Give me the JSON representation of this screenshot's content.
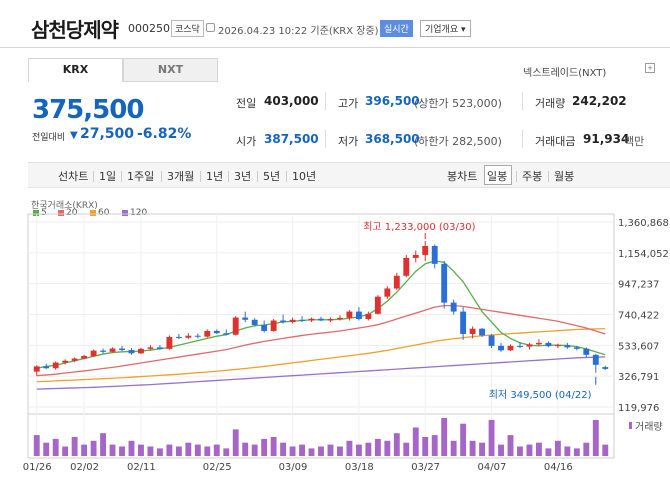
{
  "header": {
    "name": "삼천당제약",
    "code": "000250",
    "market": "코스닥",
    "timestamp": "2026.04.23 10:22  기준(KRX 장중)",
    "realtime": "실시간",
    "company_info": "기업개요 ▾"
  },
  "tabs": {
    "krx": "KRX",
    "nxt": "NXT"
  },
  "nextrade": "넥스트레이드(NXT)",
  "nextrade_icon": "plus-icon",
  "price": {
    "current": "375,500",
    "change_label": "전일대비",
    "change_arrow": "▼",
    "change": "27,500",
    "change_pct": "-6.82%"
  },
  "stats": {
    "prev_label": "전일",
    "prev": "403,000",
    "high_label": "고가",
    "high": "396,500",
    "high_limit": "(상한가 523,000)",
    "volume_label": "거래량",
    "volume": "242,202",
    "open_label": "시가",
    "open": "387,500",
    "low_label": "저가",
    "low": "368,500",
    "low_limit": "(하한가 282,500)",
    "amount_label": "거래대금",
    "amount": "91,934",
    "amount_unit": "백만"
  },
  "periods": {
    "line": "선차트",
    "d1": "1일",
    "w1": "1주일",
    "m3": "3개월",
    "y1": "1년",
    "y3": "3년",
    "y5": "5년",
    "y10": "10년",
    "candle": "봉차트",
    "daily": "일봉",
    "weekly": "주봉",
    "monthly": "월봉"
  },
  "chart_src": "한국거래소(KRX)",
  "legend": [
    {
      "label": "5",
      "color": "#55b04a"
    },
    {
      "label": "20",
      "color": "#e26a6a"
    },
    {
      "label": "60",
      "color": "#f0a030"
    },
    {
      "label": "120",
      "color": "#9a6fd0"
    }
  ],
  "volume_legend": "거래량",
  "chart_data": {
    "type": "candlestick",
    "y_ticks": [
      "1,360,868",
      "1,154,052",
      "947,237",
      "740,422",
      "533,607",
      "326,791",
      "119,976"
    ],
    "ylim": [
      119976,
      1360868
    ],
    "x_ticks": [
      "01/26",
      "02/02",
      "02/11",
      "02/25",
      "03/09",
      "03/18",
      "03/27",
      "04/07",
      "04/16"
    ],
    "high_annotation": "최고 1,233,000 (03/30)",
    "low_annotation": "최저 349,500 (04/22)",
    "colors": {
      "up": "#e03030",
      "down": "#2a6fd6",
      "volume": "#a566c8"
    },
    "candles": [
      [
        357000,
        400000,
        330000,
        392000
      ],
      [
        392000,
        410000,
        375000,
        380000
      ],
      [
        380000,
        425000,
        370000,
        418000
      ],
      [
        418000,
        440000,
        405000,
        430000
      ],
      [
        430000,
        452000,
        420000,
        445000
      ],
      [
        445000,
        470000,
        440000,
        462000
      ],
      [
        462000,
        505000,
        455000,
        498000
      ],
      [
        498000,
        512000,
        480000,
        490000
      ],
      [
        490000,
        520000,
        485000,
        512000
      ],
      [
        512000,
        530000,
        495000,
        502000
      ],
      [
        502000,
        515000,
        470000,
        480000
      ],
      [
        480000,
        518000,
        475000,
        510000
      ],
      [
        510000,
        535000,
        500000,
        520000
      ],
      [
        520000,
        535000,
        505000,
        510000
      ],
      [
        510000,
        600000,
        505000,
        590000
      ],
      [
        590000,
        610000,
        575000,
        585000
      ],
      [
        585000,
        615000,
        575000,
        598000
      ],
      [
        598000,
        612000,
        580000,
        592000
      ],
      [
        592000,
        640000,
        585000,
        630000
      ],
      [
        630000,
        640000,
        610000,
        615000
      ],
      [
        615000,
        640000,
        600000,
        605000
      ],
      [
        605000,
        730000,
        600000,
        720000
      ],
      [
        720000,
        760000,
        690000,
        705000
      ],
      [
        705000,
        715000,
        660000,
        670000
      ],
      [
        670000,
        700000,
        620000,
        630000
      ],
      [
        630000,
        710000,
        625000,
        700000
      ],
      [
        700000,
        740000,
        680000,
        690000
      ],
      [
        690000,
        720000,
        680000,
        705000
      ],
      [
        705000,
        730000,
        690000,
        700000
      ],
      [
        700000,
        720000,
        690000,
        712000
      ],
      [
        712000,
        725000,
        695000,
        700000
      ],
      [
        700000,
        720000,
        690000,
        710000
      ],
      [
        710000,
        735000,
        700000,
        718000
      ],
      [
        718000,
        770000,
        700000,
        760000
      ],
      [
        760000,
        790000,
        700000,
        710000
      ],
      [
        710000,
        760000,
        700000,
        745000
      ],
      [
        745000,
        870000,
        740000,
        860000
      ],
      [
        860000,
        930000,
        845000,
        915000
      ],
      [
        915000,
        1020000,
        905000,
        1000000
      ],
      [
        1000000,
        1140000,
        990000,
        1120000
      ],
      [
        1120000,
        1170000,
        1090000,
        1140000
      ],
      [
        1140000,
        1233000,
        1100000,
        1200000
      ],
      [
        1200000,
        1210000,
        1050000,
        1080000
      ],
      [
        1080000,
        1100000,
        780000,
        820000
      ],
      [
        820000,
        840000,
        740000,
        760000
      ],
      [
        760000,
        790000,
        570000,
        610000
      ],
      [
        610000,
        660000,
        580000,
        645000
      ],
      [
        645000,
        650000,
        590000,
        600000
      ],
      [
        600000,
        610000,
        515000,
        530000
      ],
      [
        530000,
        550000,
        490000,
        500000
      ],
      [
        500000,
        540000,
        495000,
        530000
      ],
      [
        530000,
        555000,
        515000,
        525000
      ],
      [
        525000,
        550000,
        505000,
        540000
      ],
      [
        540000,
        575000,
        530000,
        550000
      ],
      [
        550000,
        560000,
        520000,
        528000
      ],
      [
        528000,
        545000,
        515000,
        535000
      ],
      [
        535000,
        550000,
        510000,
        520000
      ],
      [
        520000,
        530000,
        500000,
        510000
      ],
      [
        510000,
        520000,
        450000,
        470000
      ],
      [
        470000,
        475000,
        349500,
        403000
      ],
      [
        387500,
        396500,
        368500,
        375500
      ]
    ],
    "ma5": [
      380000,
      392000,
      400000,
      415000,
      430000,
      445000,
      460000,
      475000,
      485000,
      490000,
      492000,
      495000,
      502000,
      510000,
      520000,
      535000,
      550000,
      565000,
      580000,
      595000,
      605000,
      630000,
      650000,
      665000,
      670000,
      680000,
      690000,
      695000,
      700000,
      705000,
      705000,
      705000,
      708000,
      715000,
      725000,
      740000,
      780000,
      830000,
      890000,
      960000,
      1030000,
      1080000,
      1100000,
      1090000,
      1030000,
      960000,
      860000,
      760000,
      690000,
      620000,
      580000,
      550000,
      535000,
      530000,
      535000,
      535000,
      532000,
      525000,
      510000,
      490000,
      470000
    ],
    "ma20": [
      330000,
      335000,
      340000,
      348000,
      355000,
      362000,
      370000,
      378000,
      386000,
      395000,
      405000,
      415000,
      425000,
      435000,
      445000,
      455000,
      465000,
      475000,
      485000,
      495000,
      505000,
      520000,
      535000,
      548000,
      560000,
      570000,
      580000,
      590000,
      600000,
      608000,
      615000,
      622000,
      630000,
      640000,
      650000,
      660000,
      672000,
      690000,
      710000,
      730000,
      750000,
      770000,
      790000,
      800000,
      800000,
      795000,
      785000,
      775000,
      765000,
      755000,
      745000,
      735000,
      725000,
      715000,
      705000,
      695000,
      680000,
      665000,
      650000,
      630000,
      610000
    ],
    "ma60": [
      290000,
      292000,
      295000,
      298000,
      301000,
      304000,
      307000,
      310000,
      313000,
      316000,
      320000,
      324000,
      328000,
      332000,
      336000,
      340000,
      345000,
      350000,
      355000,
      360000,
      366000,
      372000,
      378000,
      385000,
      392000,
      400000,
      408000,
      416000,
      424000,
      432000,
      440000,
      448000,
      456000,
      464000,
      472000,
      480000,
      490000,
      500000,
      512000,
      524000,
      536000,
      548000,
      560000,
      570000,
      578000,
      585000,
      592000,
      598000,
      603000,
      608000,
      612000,
      616000,
      620000,
      624000,
      628000,
      632000,
      636000,
      640000,
      642000,
      644000,
      645000
    ],
    "ma120": [
      240000,
      242000,
      244000,
      246000,
      248000,
      250000,
      252000,
      255000,
      258000,
      261000,
      264000,
      267000,
      270000,
      274000,
      278000,
      282000,
      286000,
      290000,
      294000,
      298000,
      302000,
      306000,
      310000,
      314000,
      318000,
      322000,
      326000,
      330000,
      334000,
      338000,
      342000,
      346000,
      350000,
      354000,
      358000,
      362000,
      366000,
      370000,
      374000,
      378000,
      382000,
      386000,
      390000,
      394000,
      398000,
      402000,
      406000,
      410000,
      414000,
      418000,
      422000,
      426000,
      430000,
      434000,
      438000,
      442000,
      446000,
      450000,
      452000,
      454000,
      456000
    ],
    "volume": [
      0.55,
      0.35,
      0.45,
      0.25,
      0.5,
      0.3,
      0.4,
      0.6,
      0.3,
      0.25,
      0.4,
      0.3,
      0.25,
      0.2,
      0.3,
      0.25,
      0.35,
      0.3,
      0.25,
      0.3,
      0.2,
      0.7,
      0.35,
      0.3,
      0.45,
      0.5,
      0.35,
      0.25,
      0.3,
      0.2,
      0.25,
      0.3,
      0.25,
      0.4,
      0.3,
      0.35,
      0.45,
      0.4,
      0.6,
      0.35,
      0.75,
      0.5,
      0.55,
      1.0,
      0.4,
      0.85,
      0.4,
      0.35,
      0.95,
      0.3,
      0.55,
      0.25,
      0.3,
      0.35,
      0.2,
      0.4,
      0.25,
      0.2,
      0.35,
      0.95,
      0.3
    ]
  }
}
